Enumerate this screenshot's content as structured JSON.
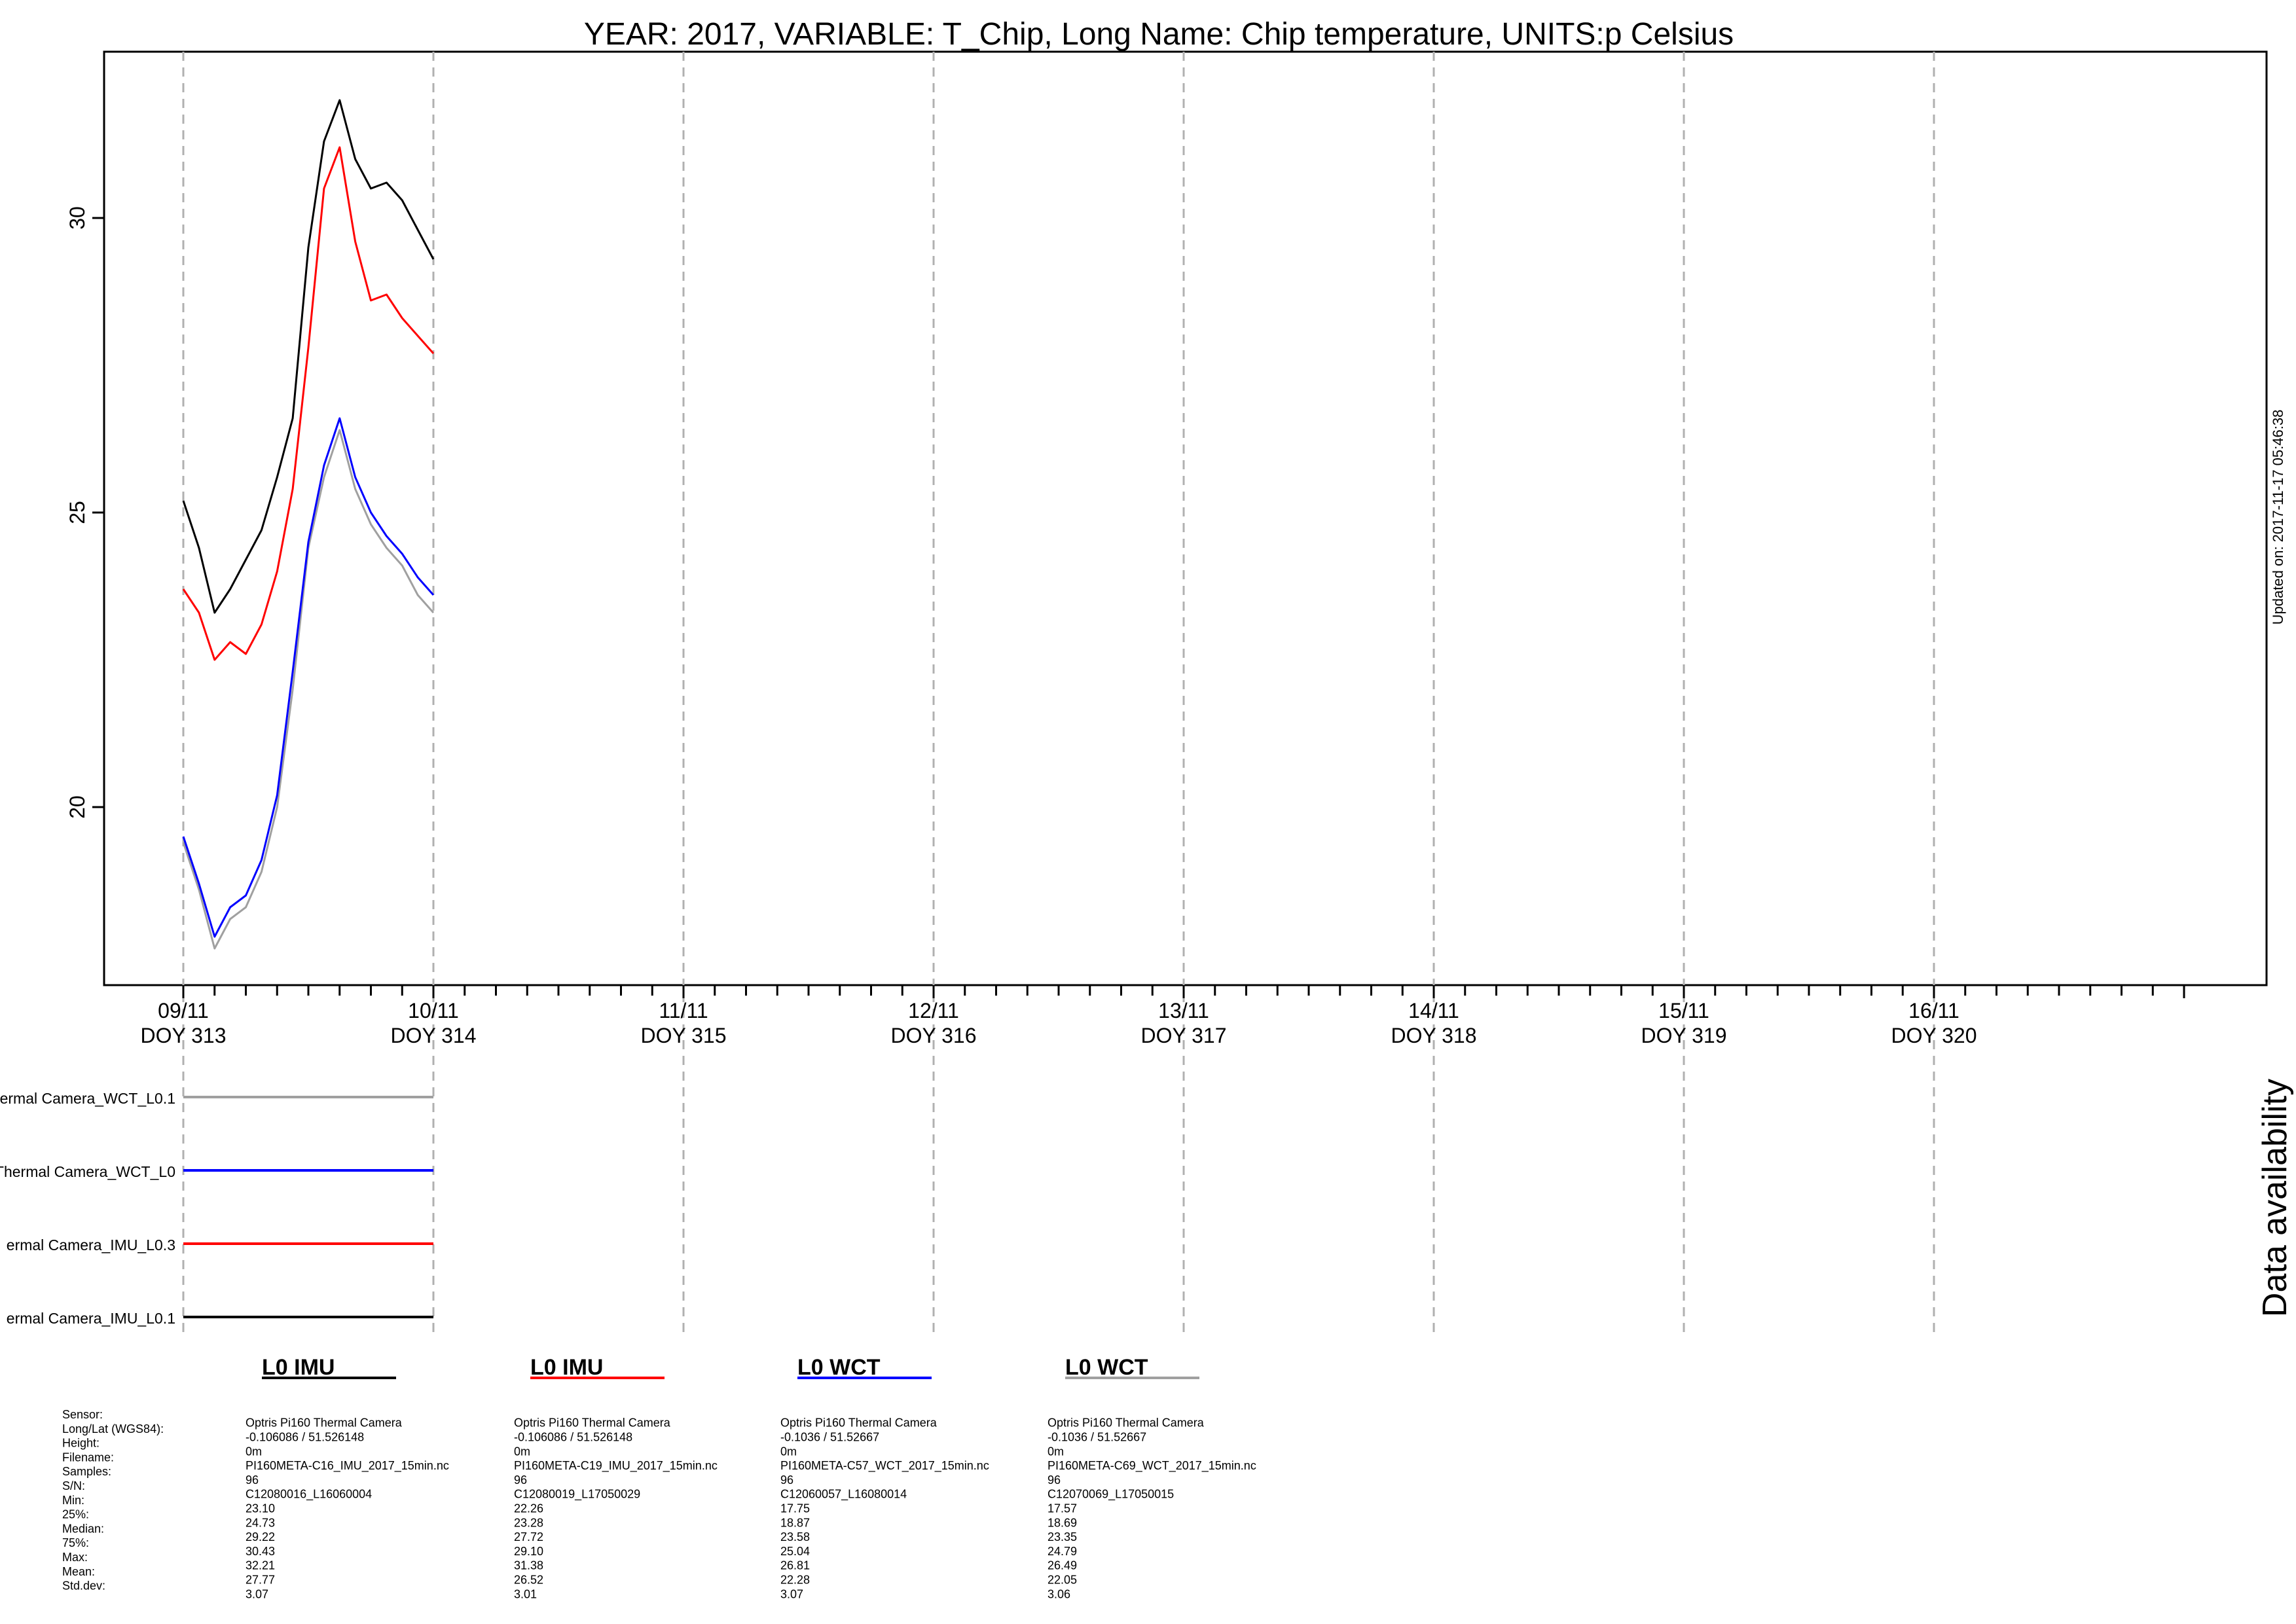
{
  "chart_data": {
    "type": "line",
    "title": "YEAR: 2017, VARIABLE: T_Chip, Long Name: Chip temperature, UNITS:p Celsius",
    "xlabel": "",
    "ylabel": "",
    "ylim": [
      17.0,
      33.0
    ],
    "xlim": [
      312.68,
      321.5
    ],
    "yticks": [
      "20",
      "25",
      "30"
    ],
    "ytick_values": [
      20,
      25,
      30
    ],
    "xticks": [
      {
        "date": "09/11",
        "doy": "DOY 313",
        "x": 313
      },
      {
        "date": "10/11",
        "doy": "DOY 314",
        "x": 314
      },
      {
        "date": "11/11",
        "doy": "DOY 315",
        "x": 315
      },
      {
        "date": "12/11",
        "doy": "DOY 316",
        "x": 316
      },
      {
        "date": "13/11",
        "doy": "DOY 317",
        "x": 317
      },
      {
        "date": "14/11",
        "doy": "DOY 318",
        "x": 318
      },
      {
        "date": "15/11",
        "doy": "DOY 319",
        "x": 319
      },
      {
        "date": "16/11",
        "doy": "DOY 320",
        "x": 320
      }
    ],
    "x": [
      313.0,
      313.0625,
      313.125,
      313.1875,
      313.25,
      313.3125,
      313.375,
      313.4375,
      313.5,
      313.5625,
      313.625,
      313.6875,
      313.75,
      313.8125,
      313.875,
      313.9375,
      314.0
    ],
    "series": [
      {
        "name": "L0 IMU",
        "color": "#000000",
        "values": [
          25.2,
          24.4,
          23.3,
          23.7,
          24.2,
          24.7,
          25.6,
          26.6,
          29.5,
          31.3,
          32.0,
          31.0,
          30.5,
          30.6,
          30.3,
          29.8,
          29.3
        ]
      },
      {
        "name": "L0 IMU",
        "color": "#ff0000",
        "values": [
          23.7,
          23.3,
          22.5,
          22.8,
          22.6,
          23.1,
          24.0,
          25.4,
          27.8,
          30.5,
          31.2,
          29.6,
          28.6,
          28.7,
          28.3,
          28.0,
          27.7
        ]
      },
      {
        "name": "L0 WCT",
        "color": "#0000ff",
        "values": [
          19.5,
          18.7,
          17.8,
          18.3,
          18.5,
          19.1,
          20.2,
          22.3,
          24.5,
          25.8,
          26.6,
          25.6,
          25.0,
          24.6,
          24.3,
          23.9,
          23.6
        ]
      },
      {
        "name": "L0 WCT",
        "color": "#a0a0a0",
        "values": [
          19.4,
          18.6,
          17.6,
          18.1,
          18.3,
          18.9,
          20.0,
          22.0,
          24.4,
          25.6,
          26.4,
          25.4,
          24.8,
          24.4,
          24.1,
          23.6,
          23.3
        ]
      }
    ],
    "grid": "vertical dashed at day boundaries",
    "updated_note": "Updated on: 2017-11-17 05:46:38",
    "availability": {
      "title": "Data availability",
      "rows": [
        {
          "label": "ermal Camera_WCT_L0.1",
          "color": "#a0a0a0",
          "from": 313,
          "to": 314
        },
        {
          "label": "Thermal Camera_WCT_L0",
          "color": "#0000ff",
          "from": 313,
          "to": 314
        },
        {
          "label": "ermal Camera_IMU_L0.3",
          "color": "#ff0000",
          "from": 313,
          "to": 314
        },
        {
          "label": "ermal Camera_IMU_L0.1",
          "color": "#000000",
          "from": 313,
          "to": 314
        }
      ]
    },
    "legend": [
      {
        "label": "L0 IMU",
        "color": "#000000"
      },
      {
        "label": "L0 IMU",
        "color": "#ff0000"
      },
      {
        "label": "L0 WCT",
        "color": "#0000ff"
      },
      {
        "label": "L0 WCT",
        "color": "#a0a0a0"
      }
    ],
    "stats": {
      "labels": [
        "Sensor:",
        "Long/Lat (WGS84):",
        "Height:",
        "Filename:",
        "Samples:",
        "S/N:",
        "Min:",
        "25%:",
        "Median:",
        "75%:",
        "Max:",
        "Mean:",
        "Std.dev:"
      ],
      "columns": [
        [
          "Optris Pi160 Thermal Camera",
          " -0.106086 / 51.526148",
          "0m",
          "PI160META-C16_IMU_2017_15min.nc",
          "96",
          "C12080016_L16060004",
          "23.10",
          "24.73",
          "29.22",
          "30.43",
          "32.21",
          "27.77",
          "3.07"
        ],
        [
          "Optris Pi160 Thermal Camera",
          " -0.106086 / 51.526148",
          "0m",
          "PI160META-C19_IMU_2017_15min.nc",
          "96",
          "C12080019_L17050029",
          "22.26",
          "23.28",
          "27.72",
          "29.10",
          "31.38",
          "26.52",
          "3.01"
        ],
        [
          "Optris Pi160 Thermal Camera",
          " -0.1036 / 51.52667",
          "0m",
          "PI160META-C57_WCT_2017_15min.nc",
          "96",
          "C12060057_L16080014",
          "17.75",
          "18.87",
          "23.58",
          "25.04",
          "26.81",
          "22.28",
          "3.07"
        ],
        [
          "Optris Pi160 Thermal Camera",
          " -0.1036 / 51.52667",
          "0m",
          "PI160META-C69_WCT_2017_15min.nc",
          "96",
          "C12070069_L17050015",
          "17.57",
          "18.69",
          "23.35",
          "24.79",
          "26.49",
          "22.05",
          "3.06"
        ]
      ]
    }
  }
}
